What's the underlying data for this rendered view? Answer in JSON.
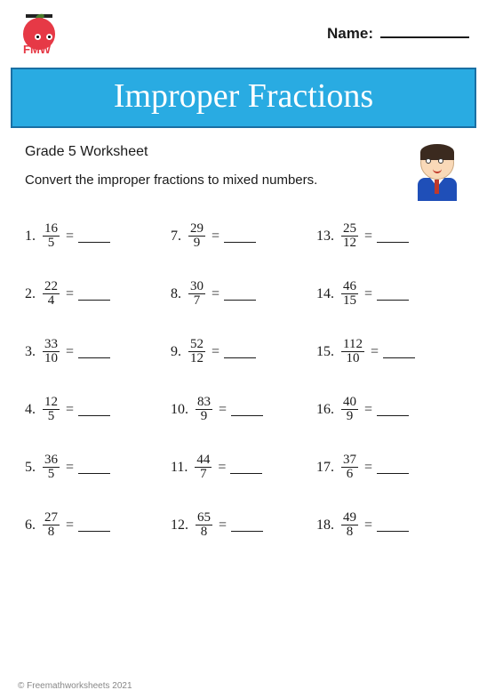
{
  "logo_text": "FMW",
  "name_label": "Name:",
  "title": "Improper Fractions",
  "title_bg": "#29abe2",
  "title_border": "#1a6fa3",
  "grade_text": "Grade 5 Worksheet",
  "instruction_text": "Convert the improper fractions to mixed numbers.",
  "footer_text": "© Freemathworksheets 2021",
  "problems": [
    {
      "n": 1,
      "num": "16",
      "den": "5"
    },
    {
      "n": 2,
      "num": "22",
      "den": "4"
    },
    {
      "n": 3,
      "num": "33",
      "den": "10"
    },
    {
      "n": 4,
      "num": "12",
      "den": "5"
    },
    {
      "n": 5,
      "num": "36",
      "den": "5"
    },
    {
      "n": 6,
      "num": "27",
      "den": "8"
    },
    {
      "n": 7,
      "num": "29",
      "den": "9"
    },
    {
      "n": 8,
      "num": "30",
      "den": "7"
    },
    {
      "n": 9,
      "num": "52",
      "den": "12"
    },
    {
      "n": 10,
      "num": "83",
      "den": "9"
    },
    {
      "n": 11,
      "num": "44",
      "den": "7"
    },
    {
      "n": 12,
      "num": "65",
      "den": "8"
    },
    {
      "n": 13,
      "num": "25",
      "den": "12"
    },
    {
      "n": 14,
      "num": "46",
      "den": "15"
    },
    {
      "n": 15,
      "num": "112",
      "den": "10"
    },
    {
      "n": 16,
      "num": "40",
      "den": "9"
    },
    {
      "n": 17,
      "num": "37",
      "den": "6"
    },
    {
      "n": 18,
      "num": "49",
      "den": "8"
    }
  ]
}
